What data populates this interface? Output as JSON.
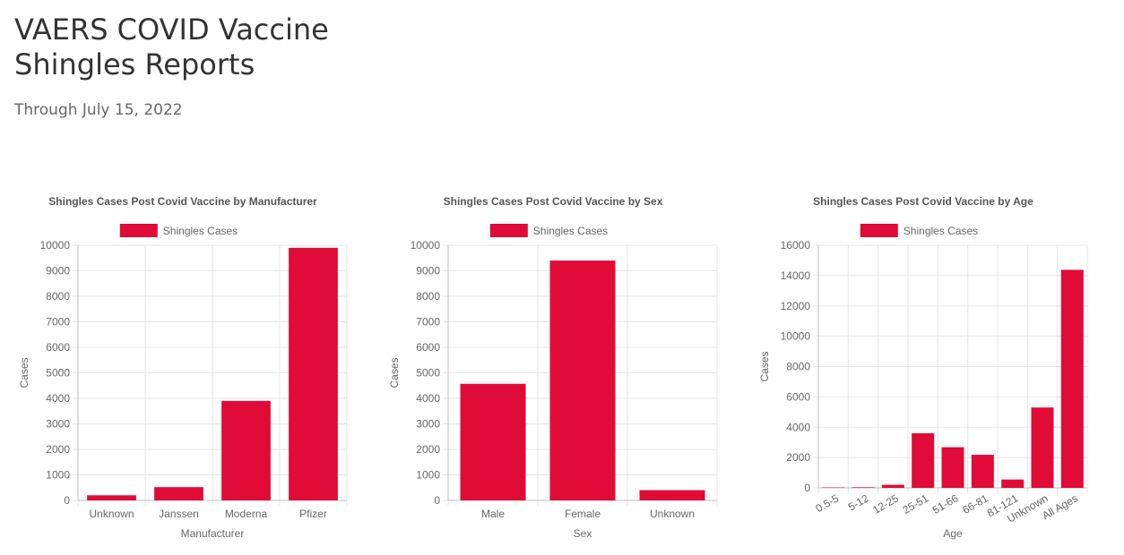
{
  "page": {
    "title": "VAERS COVID Vaccine Shingles Reports",
    "subtitle": "Through July 15, 2022"
  },
  "colors": {
    "bar": "#e00b36",
    "title_text": "#333333",
    "subtitle_text": "#666666"
  },
  "chart_data": [
    {
      "type": "bar",
      "title": "Shingles Cases Post Covid Vaccine by Manufacturer",
      "xlabel": "Manufacturer",
      "ylabel": "Cases",
      "categories": [
        "Unknown",
        "Janssen",
        "Moderna",
        "Pfizer"
      ],
      "series": [
        {
          "name": "Shingles Cases",
          "values": [
            200,
            520,
            3900,
            9900
          ]
        }
      ],
      "ylim": [
        0,
        10000
      ],
      "yticks": [
        0,
        1000,
        2000,
        3000,
        4000,
        5000,
        6000,
        7000,
        8000,
        9000,
        10000
      ],
      "grid": true,
      "legend_position": "top",
      "rotate_x_labels": false
    },
    {
      "type": "bar",
      "title": "Shingles Cases Post Covid Vaccine by Sex",
      "xlabel": "Sex",
      "ylabel": "Cases",
      "categories": [
        "Male",
        "Female",
        "Unknown"
      ],
      "series": [
        {
          "name": "Shingles Cases",
          "values": [
            4570,
            9400,
            400
          ]
        }
      ],
      "ylim": [
        0,
        10000
      ],
      "yticks": [
        0,
        1000,
        2000,
        3000,
        4000,
        5000,
        6000,
        7000,
        8000,
        9000,
        10000
      ],
      "grid": true,
      "legend_position": "top",
      "rotate_x_labels": false
    },
    {
      "type": "bar",
      "title": "Shingles Cases Post Covid Vaccine by Age",
      "xlabel": "Age",
      "ylabel": "Cases",
      "categories": [
        "0.5-5",
        "5-12",
        "12-25",
        "25-51",
        "51-66",
        "66-81",
        "81-121",
        "Unknown",
        "All Ages"
      ],
      "series": [
        {
          "name": "Shingles Cases",
          "values": [
            15,
            40,
            200,
            3600,
            2680,
            2180,
            550,
            5300,
            14380
          ]
        }
      ],
      "ylim": [
        0,
        16000
      ],
      "yticks": [
        0,
        2000,
        4000,
        6000,
        8000,
        10000,
        12000,
        14000,
        16000
      ],
      "grid": true,
      "legend_position": "top",
      "rotate_x_labels": true
    }
  ]
}
